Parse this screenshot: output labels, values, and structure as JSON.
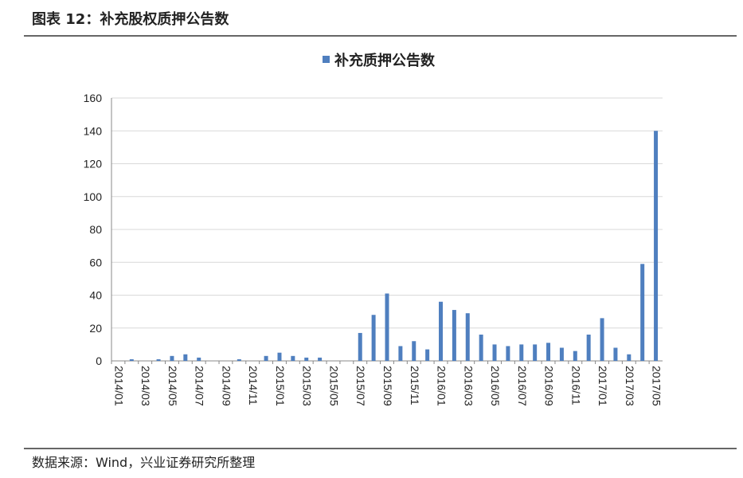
{
  "chart_data": {
    "type": "bar",
    "title": "图表 12：补充股权质押公告数",
    "source": "数据来源：Wind，兴业证券研究所整理",
    "series": [
      {
        "name": "补充质押公告数",
        "color": "#4f7fbf",
        "values": [
          0,
          1,
          0,
          1,
          3,
          4,
          2,
          0,
          0,
          1,
          0,
          3,
          5,
          3,
          2,
          2,
          0,
          0,
          17,
          28,
          41,
          9,
          12,
          7,
          36,
          31,
          29,
          16,
          10,
          9,
          10,
          10,
          11,
          8,
          6,
          16,
          26,
          8,
          4,
          59,
          140
        ]
      }
    ],
    "categories": [
      "2014/01",
      null,
      "2014/03",
      null,
      "2014/05",
      null,
      "2014/07",
      null,
      "2014/09",
      null,
      "2014/11",
      null,
      "2015/01",
      null,
      "2015/03",
      null,
      "2015/05",
      null,
      "2015/07",
      null,
      "2015/09",
      null,
      "2015/11",
      null,
      "2016/01",
      null,
      "2016/03",
      null,
      "2016/05",
      null,
      "2016/07",
      null,
      "2016/09",
      null,
      "2016/11",
      null,
      "2017/01",
      null,
      "2017/03",
      null,
      "2017/05"
    ],
    "ylim": [
      0,
      160
    ],
    "yticks": [
      0,
      20,
      40,
      60,
      80,
      100,
      120,
      140,
      160
    ],
    "grid": true
  }
}
